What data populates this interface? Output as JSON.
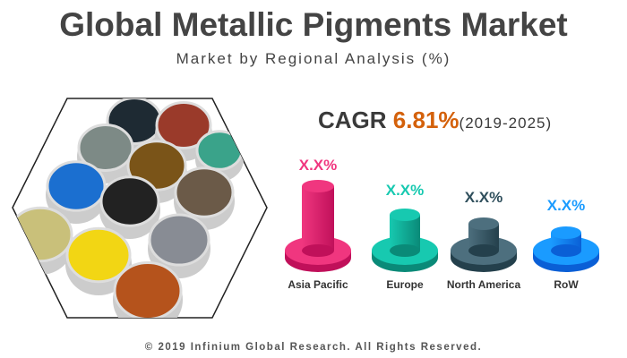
{
  "header": {
    "title": "Global Metallic Pigments Market",
    "subtitle": "Market by Regional Analysis (%)"
  },
  "cagr": {
    "label": "CAGR",
    "value": "6.81%",
    "period": "(2019-2025)",
    "value_color": "#d4610b"
  },
  "image": {
    "description_icon": "metallic-pigment-jars-image"
  },
  "regions": [
    {
      "name": "Asia Pacific",
      "value": "X.X%",
      "color": "#f0367f",
      "dark": "#c0105a"
    },
    {
      "name": "Europe",
      "value": "X.X%",
      "color": "#17c9b0",
      "dark": "#0a8a78"
    },
    {
      "name": "North America",
      "value": "X.X%",
      "color": "#4d6f7e",
      "dark": "#24404c"
    },
    {
      "name": "RoW",
      "value": "X.X%",
      "color": "#1a9bff",
      "dark": "#0a5fd6"
    }
  ],
  "footer": "© 2019 Infinium Global Research. All Rights Reserved."
}
